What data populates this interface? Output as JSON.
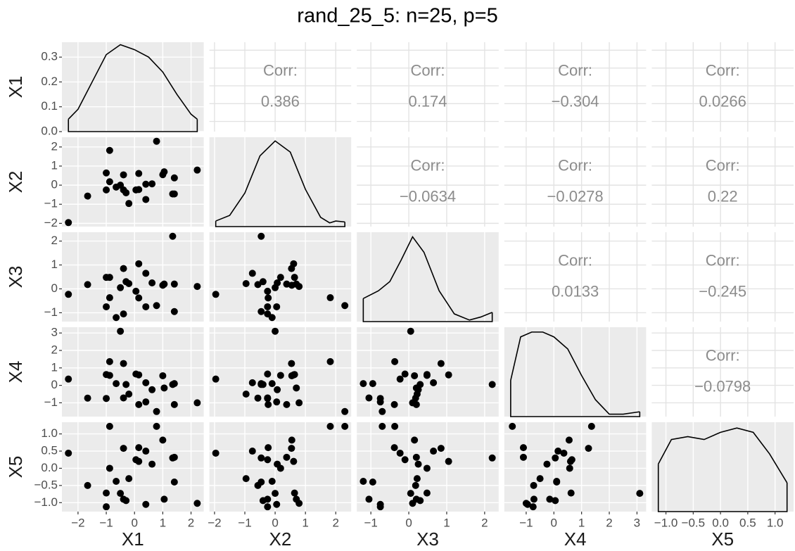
{
  "chart_data": {
    "type": "scatter-matrix",
    "title": "rand_25_5: n=25, p=5",
    "corr_label": "Corr:",
    "point_color": "#000000",
    "line_color": "#000000",
    "series": [
      {
        "name": "X1",
        "lim": [
          -2.57,
          2.45
        ],
        "ticks": [
          {
            "value": -2,
            "label": "−2"
          },
          {
            "value": -1,
            "label": "−1"
          },
          0,
          1,
          2
        ],
        "values": [
          -2.34,
          2.22,
          -1.66,
          -0.88,
          0.78,
          1.35,
          -0.5,
          -1.0,
          -1.0,
          -0.88,
          -0.65,
          -0.39,
          -0.39,
          -0.3,
          -0.2,
          0.05,
          0.15,
          0.15,
          0.4,
          0.4,
          0.62,
          1.0,
          1.05,
          1.41,
          1.41
        ]
      },
      {
        "name": "X2",
        "lim": [
          -2.17,
          2.51
        ],
        "ticks": [
          {
            "value": -2,
            "label": "−2"
          },
          {
            "value": -1,
            "label": "−1"
          },
          0,
          1,
          2
        ],
        "values": [
          -1.96,
          0.79,
          -0.57,
          1.82,
          2.3,
          -0.46,
          0.0,
          0.64,
          -0.25,
          0.18,
          -0.1,
          0.54,
          -0.25,
          -0.4,
          -0.96,
          -0.25,
          0.61,
          -0.23,
          0.05,
          -0.75,
          0.07,
          0.55,
          0.7,
          -0.46,
          0.38
        ]
      },
      {
        "name": "X3",
        "lim": [
          -1.37,
          2.37
        ],
        "ticks": [
          {
            "value": -1,
            "label": "−1"
          },
          0,
          1,
          2
        ],
        "values": [
          -0.23,
          0.1,
          0.18,
          -0.37,
          -0.7,
          2.2,
          0.05,
          0.48,
          -0.75,
          0.48,
          -1.2,
          0.85,
          -1.05,
          0.3,
          0.22,
          -0.1,
          1.05,
          -0.38,
          -0.75,
          0.65,
          0.25,
          0.15,
          0.2,
          -0.95,
          0.2
        ]
      },
      {
        "name": "X4",
        "lim": [
          -1.79,
          3.33
        ],
        "ticks": [
          {
            "value": -1,
            "label": "−1"
          },
          0,
          1,
          2,
          3
        ],
        "values": [
          0.36,
          -1.0,
          -0.73,
          1.36,
          -1.5,
          0.05,
          3.1,
          0.62,
          -0.75,
          0.57,
          0.1,
          1.25,
          -0.72,
          0.05,
          -0.5,
          0.65,
          0.6,
          -1.1,
          -0.95,
          0.15,
          -0.25,
          0.55,
          -0.15,
          0.1,
          -1.1
        ]
      },
      {
        "name": "X5",
        "lim": [
          -1.26,
          1.34
        ],
        "ticks": [
          {
            "value": -1,
            "label": "−1.0"
          },
          {
            "value": -0.5,
            "label": "−0.5"
          },
          {
            "value": 0,
            "label": "0.0"
          },
          0.5,
          {
            "value": 1,
            "label": "1.0"
          }
        ],
        "values": [
          0.44,
          -1.02,
          -0.5,
          1.22,
          1.22,
          0.3,
          -0.73,
          -0.72,
          -1.12,
          0.0,
          -0.38,
          0.58,
          -0.9,
          -0.94,
          -0.3,
          0.25,
          0.2,
          0.6,
          -1.05,
          0.5,
          0.12,
          0.82,
          -0.9,
          -0.4,
          0.32
        ]
      }
    ],
    "correlations": {
      "values": [
        0.386,
        0.174,
        -0.304,
        0.0266,
        -0.0634,
        -0.0278,
        0.22,
        0.0133,
        -0.245,
        -0.0798
      ],
      "value_labels": [
        "0.386",
        "0.174",
        "−0.304",
        "0.0266",
        "−0.0634",
        "−0.0278",
        "0.22",
        "0.0133",
        "−0.245",
        "−0.0798"
      ]
    },
    "densities": [
      {
        "x": [
          -2.34,
          -2,
          -1.5,
          -1,
          -0.5,
          0,
          0.5,
          1,
          1.5,
          2,
          2.22
        ],
        "y": [
          0.05,
          0.09,
          0.2,
          0.31,
          0.35,
          0.33,
          0.3,
          0.24,
          0.15,
          0.07,
          0.05
        ],
        "ylim": [
          0,
          0.36
        ],
        "yticks": [
          {
            "value": 0,
            "label": "0.0"
          },
          0.1,
          0.2,
          0.3
        ]
      },
      {
        "x": [
          -1.96,
          -1.5,
          -1,
          -0.5,
          0,
          0.5,
          1,
          1.5,
          1.8,
          2.0,
          2.3
        ],
        "y": [
          0.03,
          0.06,
          0.18,
          0.38,
          0.46,
          0.4,
          0.2,
          0.05,
          0.02,
          0.03,
          0.025
        ],
        "ylim": [
          0,
          0.48
        ]
      },
      {
        "x": [
          -1.2,
          -0.8,
          -0.5,
          -0.2,
          0.1,
          0.4,
          0.8,
          1.2,
          1.6,
          1.9,
          2.2
        ],
        "y": [
          0.15,
          0.2,
          0.26,
          0.4,
          0.55,
          0.45,
          0.2,
          0.05,
          0.01,
          0.03,
          0.06
        ],
        "ylim": [
          0,
          0.58
        ]
      },
      {
        "x": [
          -1.56,
          -1.2,
          -0.8,
          -0.4,
          0,
          0.5,
          1,
          1.5,
          2,
          2.5,
          3.1
        ],
        "y": [
          0.15,
          0.33,
          0.35,
          0.35,
          0.33,
          0.28,
          0.17,
          0.07,
          0.01,
          0.01,
          0.02
        ],
        "ylim": [
          0,
          0.37
        ]
      },
      {
        "x": [
          -1.14,
          -0.9,
          -0.6,
          -0.3,
          0,
          0.3,
          0.6,
          0.9,
          1.22
        ],
        "y": [
          0.33,
          0.5,
          0.52,
          0.5,
          0.55,
          0.58,
          0.55,
          0.4,
          0.2
        ],
        "ylim": [
          0,
          0.62
        ]
      }
    ]
  }
}
